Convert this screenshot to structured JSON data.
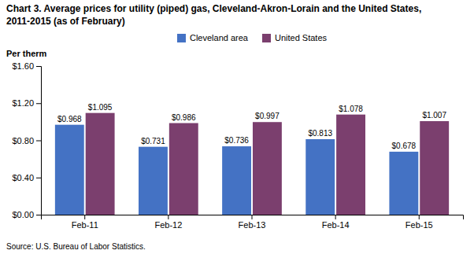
{
  "chart_data": {
    "type": "bar",
    "title": "Chart 3. Average prices for utility (piped) gas, Cleveland-Akron-Lorain and the United States,",
    "subtitle": "2011-2015  (as of February)",
    "ylabel": "Per therm",
    "source": "Source: U.S. Bureau of Labor Statistics.",
    "categories": [
      "Feb-11",
      "Feb-12",
      "Feb-13",
      "Feb-14",
      "Feb-15"
    ],
    "series": [
      {
        "name": "Cleveland area",
        "color": "#4472C4",
        "values": [
          0.968,
          0.731,
          0.736,
          0.813,
          0.678
        ],
        "value_labels": [
          "$0.968",
          "$0.731",
          "$0.736",
          "$0.813",
          "$0.678"
        ]
      },
      {
        "name": "United States",
        "color": "#7B3F6E",
        "values": [
          1.095,
          0.986,
          0.997,
          1.078,
          1.007
        ],
        "value_labels": [
          "$1.095",
          "$0.986",
          "$0.997",
          "$1.078",
          "$1.007"
        ]
      }
    ],
    "ylim": [
      0,
      1.6
    ],
    "yticks": [
      {
        "value": 0.0,
        "label": "$0.00"
      },
      {
        "value": 0.4,
        "label": "$0.40"
      },
      {
        "value": 0.8,
        "label": "$0.80"
      },
      {
        "value": 1.2,
        "label": "$1.20"
      },
      {
        "value": 1.6,
        "label": "$1.60"
      }
    ],
    "data_labels": true,
    "legend": "top",
    "grid": false
  }
}
